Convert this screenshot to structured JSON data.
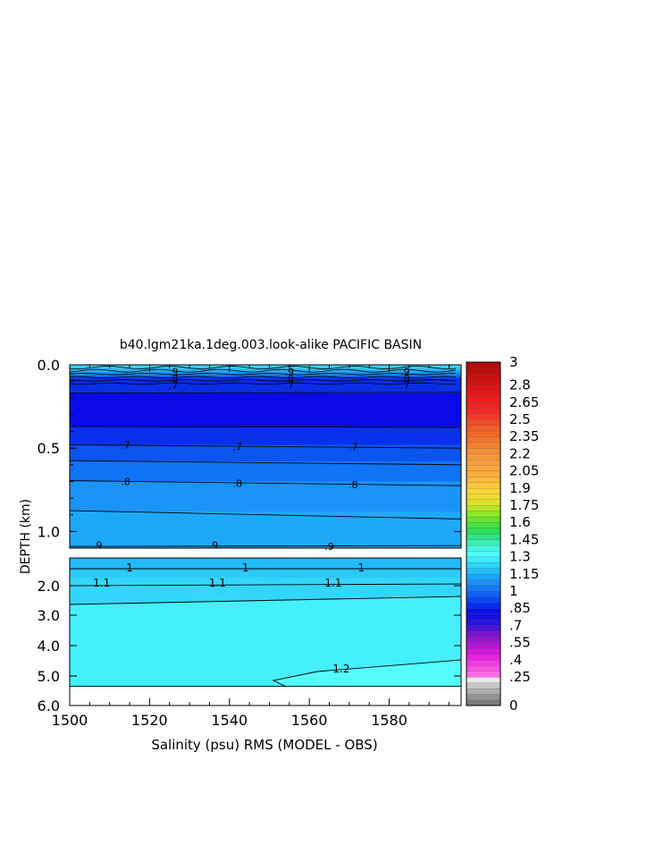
{
  "chart_data": {
    "type": "heatmap",
    "title": "b40.lgm21ka.1deg.003.look-alike PACIFIC BASIN",
    "xlabel": "Salinity (psu) RMS (MODEL - OBS)",
    "ylabel": "DEPTH (km)",
    "xlim": [
      1500,
      1598
    ],
    "x_ticks": [
      1500,
      1520,
      1540,
      1560,
      1580
    ],
    "upper_panel": {
      "ylim": [
        0.0,
        1.1
      ],
      "y_ticks": [
        "0.0",
        "0.5",
        "1.0"
      ],
      "y_tick_values": [
        0.0,
        0.5,
        1.0
      ]
    },
    "lower_panel": {
      "ylim": [
        1.0,
        6.0
      ],
      "y_ticks": [
        "2.0",
        "3.0",
        "4.0",
        "5.0",
        "6.0"
      ],
      "y_tick_values": [
        2.0,
        3.0,
        4.0,
        5.0,
        6.0
      ]
    },
    "contour_levels_upper": [
      {
        "depth": 0.17,
        "color": "#0a0ae8"
      },
      {
        "depth": 0.3,
        "color": "#0a0ae8"
      },
      {
        "depth": 0.37,
        "color": "#0a3ff2"
      },
      {
        "depth": 0.48,
        "color": "#0a3ff2"
      },
      {
        "depth": 0.58,
        "color": "#0f74f5"
      },
      {
        "depth": 0.7,
        "color": "#1a94f7"
      },
      {
        "depth": 0.88,
        "color": "#1ea8f8"
      },
      {
        "depth": 1.1,
        "color": "#22bbfa"
      }
    ],
    "contour_labels_upper": [
      {
        "text": ".9",
        "x": 1526,
        "depth": 0.04
      },
      {
        "text": ".8",
        "x": 1526,
        "depth": 0.08
      },
      {
        "text": ".7",
        "x": 1526,
        "depth": 0.12
      },
      {
        "text": ".9",
        "x": 1555,
        "depth": 0.04
      },
      {
        "text": ".8",
        "x": 1555,
        "depth": 0.08
      },
      {
        "text": ".7",
        "x": 1555,
        "depth": 0.12
      },
      {
        "text": ".9",
        "x": 1584,
        "depth": 0.04
      },
      {
        "text": ".8",
        "x": 1584,
        "depth": 0.08
      },
      {
        "text": ".7",
        "x": 1584,
        "depth": 0.12
      },
      {
        "text": ".7",
        "x": 1514,
        "depth": 0.48
      },
      {
        "text": ".7",
        "x": 1542,
        "depth": 0.49
      },
      {
        "text": ".7",
        "x": 1571,
        "depth": 0.49
      },
      {
        "text": ".8",
        "x": 1514,
        "depth": 0.7
      },
      {
        "text": ".8",
        "x": 1542,
        "depth": 0.71
      },
      {
        "text": ".8",
        "x": 1571,
        "depth": 0.72
      },
      {
        "text": ".9",
        "x": 1507,
        "depth": 1.08
      },
      {
        "text": ".9",
        "x": 1536,
        "depth": 1.08
      },
      {
        "text": ".9",
        "x": 1565,
        "depth": 1.09
      }
    ],
    "contour_labels_lower": [
      {
        "text": "1",
        "x": 1515,
        "depth": 1.35
      },
      {
        "text": "1",
        "x": 1544,
        "depth": 1.35
      },
      {
        "text": "1",
        "x": 1573,
        "depth": 1.35
      },
      {
        "text": "1.1",
        "x": 1508,
        "depth": 1.9
      },
      {
        "text": "1.1",
        "x": 1537,
        "depth": 1.9
      },
      {
        "text": "1.1",
        "x": 1566,
        "depth": 1.9
      },
      {
        "text": "1.2",
        "x": 1568,
        "depth": 4.8
      }
    ],
    "colorbar": {
      "tick_labels": [
        "3",
        "2.8",
        "2.65",
        "2.5",
        "2.35",
        "2.2",
        "2.05",
        "1.9",
        "1.75",
        "1.6",
        "1.45",
        "1.3",
        "1.15",
        "1",
        ".85",
        ".7",
        ".55",
        ".4",
        ".25",
        "0"
      ],
      "tick_values": [
        3.0,
        2.8,
        2.65,
        2.5,
        2.35,
        2.2,
        2.05,
        1.9,
        1.75,
        1.6,
        1.45,
        1.3,
        1.15,
        1.0,
        0.85,
        0.7,
        0.55,
        0.4,
        0.25,
        0.0
      ]
    }
  }
}
